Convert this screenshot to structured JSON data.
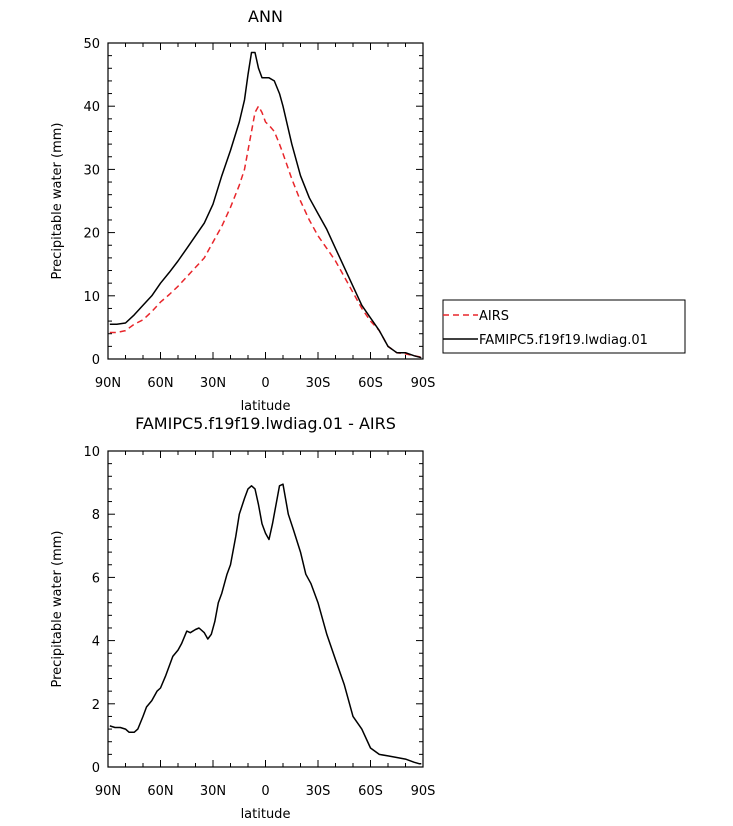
{
  "chart_data": [
    {
      "type": "line",
      "title": "ANN",
      "xlabel": "latitude",
      "ylabel": "Precipitable water (mm)",
      "xlim": [
        90,
        -90
      ],
      "ylim": [
        0,
        50
      ],
      "x_ticks": [
        90,
        60,
        30,
        0,
        -30,
        -60,
        -90
      ],
      "x_tick_labels": [
        "90N",
        "60N",
        "30N",
        "0",
        "30S",
        "60S",
        "90S"
      ],
      "y_ticks": [
        0,
        10,
        20,
        30,
        40,
        50
      ],
      "y_tick_labels": [
        "0",
        "10",
        "20",
        "30",
        "40",
        "50"
      ],
      "legend_position": "right",
      "series": [
        {
          "name": "AIRS",
          "color": "#e8262b",
          "dash": "dashed",
          "x": [
            89,
            85,
            80,
            75,
            70,
            65,
            60,
            55,
            50,
            45,
            40,
            35,
            30,
            25,
            20,
            15,
            12,
            10,
            8,
            6,
            4,
            2,
            0,
            -2,
            -5,
            -8,
            -10,
            -15,
            -20,
            -25,
            -30,
            -35,
            -40,
            -45,
            -50,
            -55,
            -60,
            -65,
            -70,
            -75,
            -80,
            -85,
            -89
          ],
          "y": [
            4.2,
            4.2,
            4.5,
            5.5,
            6.2,
            7.5,
            9.0,
            10.2,
            11.5,
            13.0,
            14.5,
            16.0,
            18.5,
            21.0,
            24.0,
            27.5,
            30.0,
            33.0,
            36.0,
            39.0,
            40.0,
            39.0,
            37.5,
            37.0,
            36.0,
            34.0,
            32.5,
            28.5,
            25.0,
            22.0,
            19.5,
            17.5,
            15.5,
            13.0,
            10.5,
            8.0,
            6.0,
            4.5,
            2.0,
            1.0,
            0.8,
            0.5,
            0.3
          ]
        },
        {
          "name": "FAMIPC5.f19f19.lwdiag.01",
          "color": "#000000",
          "dash": "solid",
          "x": [
            89,
            85,
            80,
            75,
            70,
            65,
            60,
            55,
            50,
            45,
            40,
            35,
            30,
            25,
            20,
            15,
            12,
            10,
            8,
            6,
            4,
            2,
            0,
            -2,
            -5,
            -8,
            -10,
            -15,
            -20,
            -25,
            -30,
            -35,
            -40,
            -45,
            -50,
            -55,
            -60,
            -65,
            -70,
            -75,
            -80,
            -85,
            -89
          ],
          "y": [
            5.5,
            5.5,
            5.7,
            7.0,
            8.5,
            10.0,
            12.0,
            13.7,
            15.5,
            17.5,
            19.5,
            21.5,
            24.5,
            29.0,
            33.0,
            37.5,
            41.0,
            45.0,
            48.5,
            48.5,
            46.0,
            44.5,
            44.5,
            44.5,
            44.0,
            42.0,
            40.0,
            34.0,
            29.0,
            25.5,
            23.0,
            20.5,
            17.5,
            14.5,
            11.5,
            8.5,
            6.5,
            4.5,
            2.0,
            1.0,
            1.0,
            0.5,
            0.2
          ]
        }
      ]
    },
    {
      "type": "line",
      "title": "FAMIPC5.f19f19.lwdiag.01 - AIRS",
      "xlabel": "latitude",
      "ylabel": "Precipitable water (mm)",
      "xlim": [
        90,
        -90
      ],
      "ylim": [
        0,
        10
      ],
      "x_ticks": [
        90,
        60,
        30,
        0,
        -30,
        -60,
        -90
      ],
      "x_tick_labels": [
        "90N",
        "60N",
        "30N",
        "0",
        "30S",
        "60S",
        "90S"
      ],
      "y_ticks": [
        0,
        2,
        4,
        6,
        8,
        10
      ],
      "y_tick_labels": [
        "0",
        "2",
        "4",
        "6",
        "8",
        "10"
      ],
      "series": [
        {
          "color": "#000000",
          "dash": "solid",
          "x": [
            89,
            86,
            83,
            80,
            78,
            75,
            73,
            70,
            68,
            65,
            62,
            60,
            57,
            55,
            53,
            50,
            48,
            45,
            43,
            40,
            38,
            35,
            33,
            31,
            29,
            27,
            25,
            22,
            20,
            17,
            15,
            12,
            10,
            8,
            6,
            4,
            2,
            0,
            -2,
            -4,
            -6,
            -8,
            -10,
            -13,
            -16,
            -20,
            -23,
            -26,
            -30,
            -35,
            -40,
            -45,
            -50,
            -55,
            -60,
            -65,
            -70,
            -75,
            -80,
            -85,
            -88,
            -89
          ],
          "y": [
            1.3,
            1.25,
            1.25,
            1.2,
            1.1,
            1.1,
            1.2,
            1.6,
            1.9,
            2.1,
            2.4,
            2.5,
            2.9,
            3.2,
            3.5,
            3.7,
            3.9,
            4.3,
            4.25,
            4.35,
            4.4,
            4.25,
            4.05,
            4.2,
            4.6,
            5.2,
            5.5,
            6.1,
            6.4,
            7.3,
            8.0,
            8.5,
            8.8,
            8.9,
            8.8,
            8.3,
            7.7,
            7.4,
            7.2,
            7.7,
            8.3,
            8.9,
            8.95,
            8.0,
            7.5,
            6.8,
            6.1,
            5.8,
            5.2,
            4.2,
            3.4,
            2.6,
            1.6,
            1.2,
            0.6,
            0.4,
            0.35,
            0.3,
            0.25,
            0.15,
            0.1,
            0.1
          ]
        }
      ]
    }
  ]
}
